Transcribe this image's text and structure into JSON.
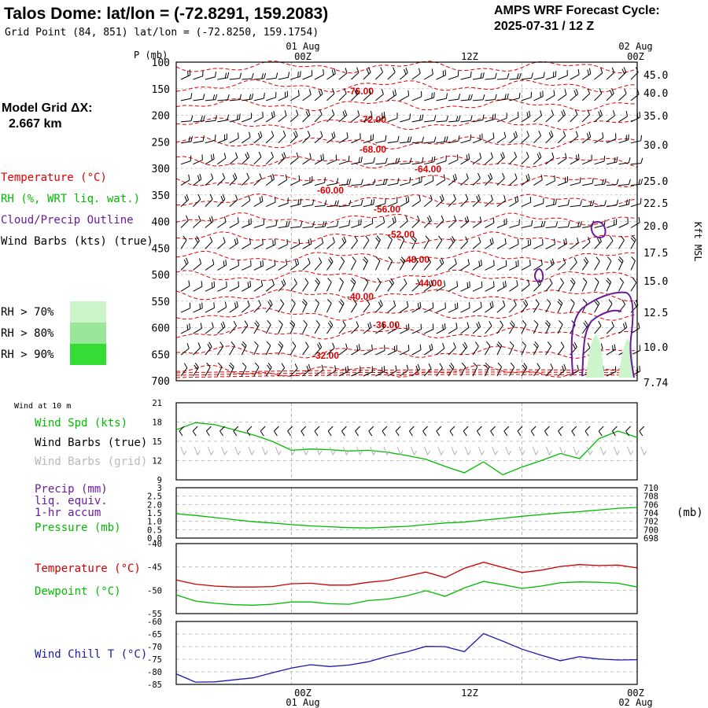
{
  "header": {
    "station_title": "Talos Dome:  lat/lon = (-72.8291, 159.2083)",
    "grid_point": "Grid Point (84, 851) lat/lon = (-72.8250, 159.1754)",
    "cycle_label": "AMPS WRF Forecast Cycle:",
    "cycle_value": "2025-07-31 / 12  Z"
  },
  "time_axis": {
    "top_dates": [
      "01 Aug",
      "02 Aug"
    ],
    "ticks": [
      "00Z",
      "12Z",
      "00Z"
    ],
    "bottom_dates": [
      "01 Aug",
      "02 Aug"
    ]
  },
  "left_panel": {
    "model_grid_label": "Model Grid ΔX:",
    "model_grid_value": "2.667 km",
    "legend": [
      {
        "text": "Temperature (°C)",
        "color": "#e00000"
      },
      {
        "text": "RH (%, WRT liq. wat.)",
        "color": "#00bb00"
      },
      {
        "text": "Cloud/Precip Outline",
        "color": "#6a1b9a"
      },
      {
        "text": "Wind Barbs (kts) (true)",
        "color": "#000000"
      }
    ],
    "rh_scale": [
      {
        "text": "RH > 70%",
        "color": "#ccf5cc"
      },
      {
        "text": "RH > 80%",
        "color": "#99e599"
      },
      {
        "text": "RH > 90%",
        "color": "#33dd33"
      }
    ]
  },
  "chart_data": [
    {
      "type": "heatmap",
      "title": "",
      "ylabel": "P (mb)",
      "ylabel_right": "Kft MSL",
      "y_ticks": [
        100,
        150,
        200,
        250,
        300,
        350,
        400,
        450,
        500,
        550,
        600,
        650,
        700
      ],
      "y_right_ticks": [
        "45.0",
        "40.0",
        "35.0",
        "30.0",
        "25.0",
        "22.5",
        "20.0",
        "17.5",
        "15.0",
        "12.5",
        "10.0",
        "7.74"
      ],
      "ylim": [
        100,
        700
      ],
      "temperature_contour_labels": [
        "-76.00",
        "-72.00",
        "-68.00",
        "-64.00",
        "-60.00",
        "-56.00",
        "-52.00",
        "-48.00",
        "-44.00",
        "-40.00",
        "-36.00",
        "-32.00"
      ],
      "grid": true
    },
    {
      "type": "line",
      "side_label": "Wind at 10 m",
      "legend": [
        {
          "name": "Wind Spd (kts)",
          "color": "#00bb00"
        },
        {
          "name": "Wind Barbs (true)",
          "color": "#000000"
        },
        {
          "name": "Wind Barbs (grid)",
          "color": "#b8b8b8"
        }
      ],
      "y_ticks": [
        9,
        12,
        15,
        18,
        21
      ],
      "ylim": [
        9,
        21
      ],
      "x": [
        0,
        2,
        4,
        6,
        8,
        10,
        12,
        14,
        16,
        18,
        20,
        22,
        24,
        26,
        28,
        30,
        32,
        34,
        36,
        38,
        40,
        42,
        44,
        46,
        48
      ],
      "series": [
        {
          "name": "Wind Spd (kts)",
          "values": [
            16.8,
            17.9,
            17.6,
            16.8,
            16.0,
            15.0,
            13.6,
            13.8,
            13.7,
            13.5,
            13.6,
            13.3,
            12.8,
            12.2,
            11.1,
            10.1,
            11.8,
            9.8,
            11.0,
            12.0,
            13.1,
            12.3,
            15.4,
            16.6,
            15.6
          ]
        }
      ],
      "grid": true
    },
    {
      "type": "line",
      "legend": [
        {
          "name": "Precip (mm)",
          "color": "#6a1b9a"
        },
        {
          "name": "liq. equiv.",
          "color": "#6a1b9a"
        },
        {
          "name": "1-hr accum",
          "color": "#6a1b9a"
        },
        {
          "name": "Pressure (mb)",
          "color": "#00bb00"
        }
      ],
      "y_ticks": [
        "0.0",
        "0.5",
        "1.0",
        "1.5",
        "2.0",
        "2.5",
        "3"
      ],
      "ylim": [
        0,
        3
      ],
      "y_right_ticks": [
        "698",
        "700",
        "702",
        "704",
        "706",
        "708",
        "710"
      ],
      "y_right_label": "(mb)",
      "y_right_lim": [
        698,
        710
      ],
      "x": [
        0,
        2,
        4,
        6,
        8,
        10,
        12,
        14,
        16,
        18,
        20,
        22,
        24,
        26,
        28,
        30,
        32,
        34,
        36,
        38,
        40,
        42,
        44,
        46,
        48
      ],
      "series": [
        {
          "name": "Pressure (mb)",
          "values": [
            703.8,
            703.4,
            702.9,
            702.4,
            701.9,
            701.6,
            701.2,
            700.9,
            700.7,
            700.5,
            700.4,
            700.6,
            700.8,
            701.2,
            701.6,
            701.8,
            702.3,
            702.7,
            703.2,
            703.6,
            704.0,
            704.3,
            704.7,
            705.1,
            705.3
          ]
        },
        {
          "name": "Precip (mm)",
          "values": [
            0,
            0,
            0,
            0,
            0,
            0,
            0,
            0,
            0,
            0,
            0,
            0,
            0,
            0,
            0,
            0,
            0,
            0,
            0,
            0,
            0,
            0,
            0,
            0,
            0
          ]
        }
      ],
      "grid": true
    },
    {
      "type": "line",
      "legend": [
        {
          "name": "Temperature (°C)",
          "color": "#cc0000"
        },
        {
          "name": "Dewpoint (°C)",
          "color": "#00bb00"
        }
      ],
      "y_ticks": [
        -55,
        -50,
        -45,
        -40
      ],
      "ylim": [
        -55,
        -40
      ],
      "x": [
        0,
        2,
        4,
        6,
        8,
        10,
        12,
        14,
        16,
        18,
        20,
        22,
        24,
        26,
        28,
        30,
        32,
        34,
        36,
        38,
        40,
        42,
        44,
        46,
        48
      ],
      "series": [
        {
          "name": "Temperature (°C)",
          "values": [
            -47.8,
            -48.7,
            -49.1,
            -49.3,
            -49.3,
            -49.2,
            -48.6,
            -48.5,
            -48.9,
            -48.9,
            -48.3,
            -47.9,
            -47.0,
            -46.1,
            -47.3,
            -45.3,
            -44.0,
            -45.1,
            -46.2,
            -45.7,
            -44.9,
            -44.5,
            -44.7,
            -44.6,
            -45.2
          ]
        },
        {
          "name": "Dewpoint (°C)",
          "values": [
            -51.0,
            -52.3,
            -52.8,
            -53.1,
            -53.2,
            -53.0,
            -52.5,
            -52.5,
            -52.9,
            -53.0,
            -52.2,
            -51.9,
            -51.2,
            -50.1,
            -51.3,
            -49.5,
            -48.1,
            -48.8,
            -49.6,
            -49.1,
            -48.4,
            -48.2,
            -48.3,
            -48.5,
            -49.3
          ]
        }
      ],
      "grid": true
    },
    {
      "type": "line",
      "legend": [
        {
          "name": "Wind Chill T (°C)",
          "color": "#1a1aaa"
        }
      ],
      "y_ticks": [
        -85,
        -80,
        -75,
        -70,
        -65,
        -60
      ],
      "ylim": [
        -85,
        -60
      ],
      "x": [
        0,
        2,
        4,
        6,
        8,
        10,
        12,
        14,
        16,
        18,
        20,
        22,
        24,
        26,
        28,
        30,
        32,
        34,
        36,
        38,
        40,
        42,
        44,
        46,
        48
      ],
      "series": [
        {
          "name": "Wind Chill T (°C)",
          "values": [
            -80.8,
            -84.1,
            -84.0,
            -83.2,
            -82.4,
            -80.4,
            -78.5,
            -77.2,
            -77.9,
            -77.3,
            -76.0,
            -73.8,
            -72.1,
            -69.9,
            -70.0,
            -72.0,
            -64.8,
            -67.8,
            -71.0,
            -73.4,
            -75.6,
            -74.0,
            -74.9,
            -75.3,
            -75.2
          ]
        }
      ],
      "grid": true
    }
  ]
}
